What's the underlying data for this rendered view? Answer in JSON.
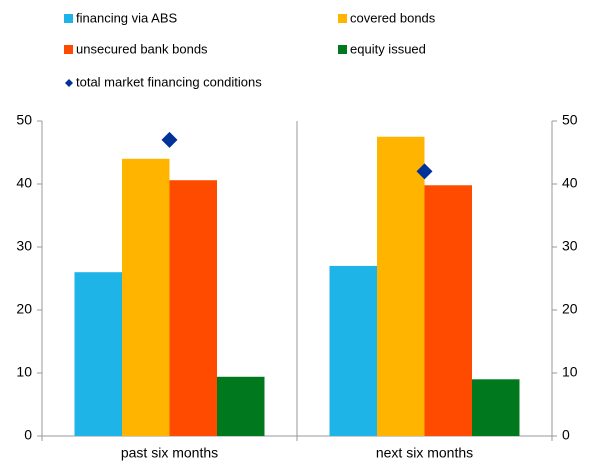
{
  "chart_data": {
    "type": "bar",
    "categories": [
      "past six months",
      "next six months"
    ],
    "series": [
      {
        "name": "financing via ABS",
        "color": "#1eb4e8",
        "values": [
          26,
          27
        ]
      },
      {
        "name": "covered bonds",
        "color": "#ffb400",
        "values": [
          44,
          47.5
        ]
      },
      {
        "name": "unsecured bank bonds",
        "color": "#ff4b00",
        "values": [
          40.6,
          39.8
        ]
      },
      {
        "name": "equity issued",
        "color": "#00781e",
        "values": [
          9.4,
          9
        ]
      },
      {
        "name": "total market financing conditions",
        "color": "#003299",
        "marker": "diamond",
        "values": [
          47,
          42
        ]
      }
    ],
    "ylim": [
      0,
      50
    ],
    "yticks": [
      0,
      10,
      20,
      30,
      40,
      50
    ],
    "y2lim": [
      0,
      50
    ],
    "y2ticks": [
      0,
      10,
      20,
      30,
      40,
      50
    ],
    "grid": false
  }
}
